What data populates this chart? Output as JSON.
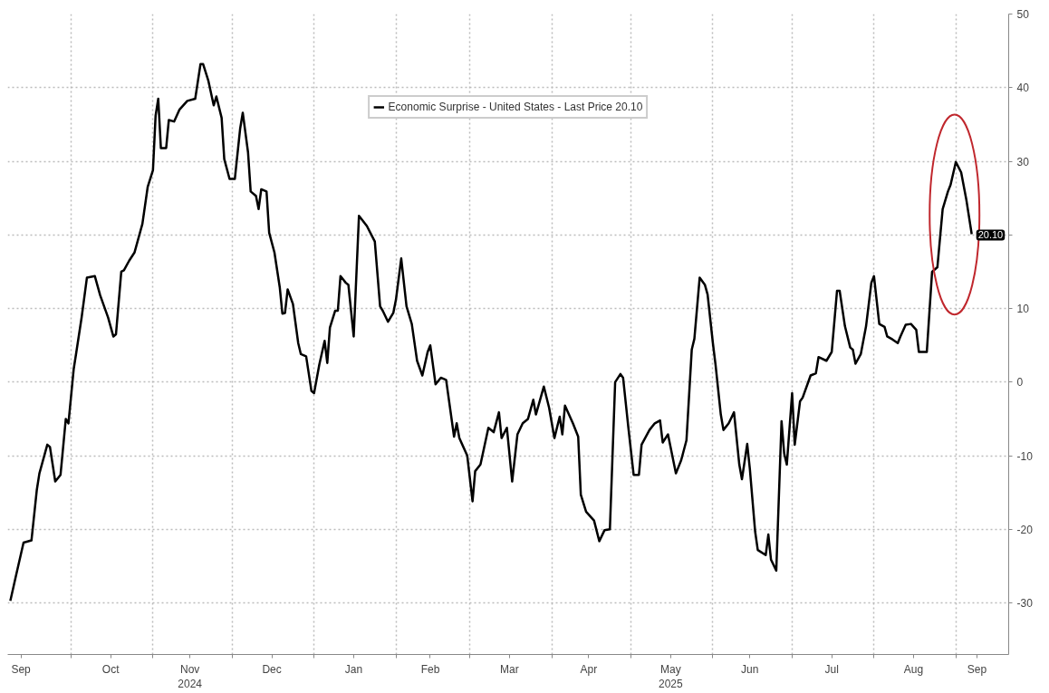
{
  "chart_data": {
    "type": "line",
    "xlim": [
      "2024-09-07",
      "2025-09-21"
    ],
    "ylim": [
      -37,
      50
    ],
    "yticks": [
      -30,
      -20,
      -10,
      0,
      10,
      {
        "value": 20,
        "label": null
      },
      30,
      40,
      50
    ],
    "xticks": [
      {
        "value": "2024-09-12",
        "label": "Sep"
      },
      {
        "value": "2024-10-01",
        "label": null
      },
      {
        "value": "2024-10-16",
        "label": "Oct"
      },
      {
        "value": "2024-11-01",
        "label": null
      },
      {
        "value": "2024-11-15",
        "label": "Nov\n2024"
      },
      {
        "value": "2024-12-01",
        "label": null
      },
      {
        "value": "2024-12-16",
        "label": "Dec"
      },
      {
        "value": "2025-01-01",
        "label": null
      },
      {
        "value": "2025-01-16",
        "label": "Jan"
      },
      {
        "value": "2025-02-01",
        "label": null
      },
      {
        "value": "2025-02-14",
        "label": "Feb"
      },
      {
        "value": "2025-03-01",
        "label": null
      },
      {
        "value": "2025-03-16",
        "label": "Mar"
      },
      {
        "value": "2025-04-01",
        "label": null
      },
      {
        "value": "2025-04-15",
        "label": "Apr"
      },
      {
        "value": "2025-05-01",
        "label": null
      },
      {
        "value": "2025-05-16",
        "label": "May\n2025"
      },
      {
        "value": "2025-06-01",
        "label": null
      },
      {
        "value": "2025-06-15",
        "label": "Jun"
      },
      {
        "value": "2025-07-01",
        "label": null
      },
      {
        "value": "2025-07-16",
        "label": "Jul"
      },
      {
        "value": "2025-08-01",
        "label": null
      },
      {
        "value": "2025-08-16",
        "label": "Aug"
      },
      {
        "value": "2025-09-01",
        "label": null
      },
      {
        "value": "2025-09-09",
        "label": "Sep"
      }
    ],
    "grid": true,
    "legend": "top",
    "line_style": "solid",
    "annotations": [
      {
        "text": "20.10",
        "x": "2025-09-07",
        "y": 20.1
      }
    ],
    "x": [
      "2024-09-08",
      "2024-09-10",
      "2024-09-13",
      "2024-09-16",
      "2024-09-18",
      "2024-09-19",
      "2024-09-22",
      "2024-09-23",
      "2024-09-25",
      "2024-09-27",
      "2024-09-29",
      "2024-09-30",
      "2024-10-02",
      "2024-10-03",
      "2024-10-05",
      "2024-10-07",
      "2024-10-10",
      "2024-10-12",
      "2024-10-15",
      "2024-10-17",
      "2024-10-18",
      "2024-10-20",
      "2024-10-21",
      "2024-10-23",
      "2024-10-25",
      "2024-10-28",
      "2024-10-30",
      "2024-11-01",
      "2024-11-02",
      "2024-11-03",
      "2024-11-04",
      "2024-11-06",
      "2024-11-07",
      "2024-11-09",
      "2024-11-11",
      "2024-11-12",
      "2024-11-14",
      "2024-11-17",
      "2024-11-19",
      "2024-11-20",
      "2024-11-22",
      "2024-11-24",
      "2024-11-25",
      "2024-11-27",
      "2024-11-28",
      "2024-11-30",
      "2024-12-02",
      "2024-12-04",
      "2024-12-05",
      "2024-12-07",
      "2024-12-08",
      "2024-12-10",
      "2024-12-11",
      "2024-12-12",
      "2024-12-14",
      "2024-12-15",
      "2024-12-17",
      "2024-12-19",
      "2024-12-20",
      "2024-12-21",
      "2024-12-22",
      "2024-12-24",
      "2024-12-26",
      "2024-12-27",
      "2024-12-29",
      "2024-12-31",
      "2025-01-01",
      "2025-01-03",
      "2025-01-05",
      "2025-01-06",
      "2025-01-07",
      "2025-01-09",
      "2025-01-10",
      "2025-01-11",
      "2025-01-13",
      "2025-01-14",
      "2025-01-16",
      "2025-01-18",
      "2025-01-21",
      "2025-01-24",
      "2025-01-26",
      "2025-01-27",
      "2025-01-29",
      "2025-01-31",
      "2025-02-01",
      "2025-02-03",
      "2025-02-05",
      "2025-02-07",
      "2025-02-09",
      "2025-02-11",
      "2025-02-13",
      "2025-02-14",
      "2025-02-16",
      "2025-02-18",
      "2025-02-20",
      "2025-02-23",
      "2025-02-24",
      "2025-02-25",
      "2025-02-28",
      "2025-03-02",
      "2025-03-03",
      "2025-03-05",
      "2025-03-08",
      "2025-03-10",
      "2025-03-12",
      "2025-03-13",
      "2025-03-15",
      "2025-03-17",
      "2025-03-19",
      "2025-03-21",
      "2025-03-23",
      "2025-03-25",
      "2025-03-26",
      "2025-03-29",
      "2025-03-31",
      "2025-04-02",
      "2025-04-04",
      "2025-04-05",
      "2025-04-06",
      "2025-04-09",
      "2025-04-11",
      "2025-04-12",
      "2025-04-14",
      "2025-04-17",
      "2025-04-19",
      "2025-04-21",
      "2025-04-23",
      "2025-04-25",
      "2025-04-27",
      "2025-04-28",
      "2025-04-30",
      "2025-05-02",
      "2025-05-04",
      "2025-05-05",
      "2025-05-08",
      "2025-05-10",
      "2025-05-12",
      "2025-05-13",
      "2025-05-15",
      "2025-05-18",
      "2025-05-20",
      "2025-05-22",
      "2025-05-24",
      "2025-05-25",
      "2025-05-27",
      "2025-05-29",
      "2025-05-30",
      "2025-06-01",
      "2025-06-02",
      "2025-06-04",
      "2025-06-05",
      "2025-06-07",
      "2025-06-09",
      "2025-06-11",
      "2025-06-12",
      "2025-06-14",
      "2025-06-15",
      "2025-06-17",
      "2025-06-18",
      "2025-06-21",
      "2025-06-22",
      "2025-06-23",
      "2025-06-25",
      "2025-06-27",
      "2025-06-28",
      "2025-06-29",
      "2025-07-01",
      "2025-07-02",
      "2025-07-04",
      "2025-07-05",
      "2025-07-08",
      "2025-07-10",
      "2025-07-11",
      "2025-07-14",
      "2025-07-16",
      "2025-07-18",
      "2025-07-19",
      "2025-07-21",
      "2025-07-23",
      "2025-07-24",
      "2025-07-25",
      "2025-07-27",
      "2025-07-29",
      "2025-07-31",
      "2025-08-01",
      "2025-08-03",
      "2025-08-05",
      "2025-08-06",
      "2025-08-08",
      "2025-08-10",
      "2025-08-11",
      "2025-08-13",
      "2025-08-15",
      "2025-08-17",
      "2025-08-18",
      "2025-08-21",
      "2025-08-23",
      "2025-08-25",
      "2025-08-27",
      "2025-08-29",
      "2025-08-30",
      "2025-09-01",
      "2025-09-03",
      "2025-09-05",
      "2025-09-07"
    ],
    "series": [
      {
        "name": "Economic Surprise - United States - Last Price 20.10",
        "color": "#000000",
        "values": [
          -29.7,
          -26.5,
          -21.8,
          -21.5,
          -14.7,
          -12.4,
          -8.5,
          -8.8,
          -13.5,
          -12.6,
          -5,
          -5.6,
          1.8,
          4.1,
          8.8,
          14.2,
          14.4,
          11.8,
          8.8,
          6.2,
          6.5,
          15,
          15.2,
          16.5,
          17.6,
          21.5,
          26.5,
          28.8,
          36.2,
          38.5,
          31.8,
          31.8,
          35.6,
          35.4,
          37,
          37.4,
          38.2,
          38.5,
          43.2,
          43.2,
          40.9,
          37.6,
          38.8,
          35.9,
          30.3,
          27.6,
          27.6,
          34.4,
          36.6,
          31.2,
          25.9,
          25.3,
          23.5,
          26.2,
          25.9,
          20.3,
          17.6,
          12.9,
          9.3,
          9.4,
          12.6,
          10.6,
          5.3,
          3.8,
          3.5,
          -1.2,
          -1.5,
          2.4,
          5.6,
          2.6,
          7.4,
          9.7,
          9.7,
          14.4,
          13.5,
          13.2,
          6.2,
          22.6,
          21.2,
          19.1,
          10.3,
          9.7,
          8.2,
          9.4,
          11.2,
          16.8,
          10.3,
          7.9,
          2.9,
          0.9,
          4.1,
          5,
          -0.3,
          0.6,
          0.3,
          -7.4,
          -5.6,
          -7.6,
          -10,
          -16.2,
          -12.1,
          -11.2,
          -6.2,
          -6.8,
          -4.1,
          -7.6,
          -6.2,
          -13.5,
          -7.1,
          -5.6,
          -5,
          -2.4,
          -4.4,
          -0.6,
          -3.5,
          -7.6,
          -4.7,
          -7.1,
          -3.2,
          -5.6,
          -7.4,
          -15.3,
          -17.6,
          -18.8,
          -21.6,
          -20.1,
          -20,
          0,
          1.1,
          0.6,
          -6.2,
          -12.6,
          -12.6,
          -8.5,
          -6.5,
          -5.6,
          -5.2,
          -8.2,
          -7.1,
          -12.4,
          -10.6,
          -7.9,
          4.4,
          5.9,
          14.2,
          13.2,
          11.9,
          5.3,
          2.4,
          -4.4,
          -6.5,
          -5.6,
          -4.1,
          -11.2,
          -13.2,
          -8.4,
          -11.8,
          -20.3,
          -22.8,
          -23.5,
          -20.7,
          -24.1,
          -25.6,
          -5.3,
          -9.7,
          -11.2,
          -1.5,
          -8.5,
          -2.6,
          -2.1,
          0.9,
          1.2,
          3.4,
          2.9,
          4.1,
          12.4,
          12.4,
          7.6,
          4.7,
          4.4,
          2.5,
          3.8,
          7.6,
          13.5,
          14.4,
          7.9,
          7.5,
          6.2,
          5.8,
          5.3,
          6.2,
          7.8,
          7.9,
          7.1,
          4.1,
          4.1,
          15,
          15.6,
          23.5,
          25.9,
          26.8,
          29.9,
          28.5,
          24.7,
          20.1
        ]
      }
    ]
  }
}
